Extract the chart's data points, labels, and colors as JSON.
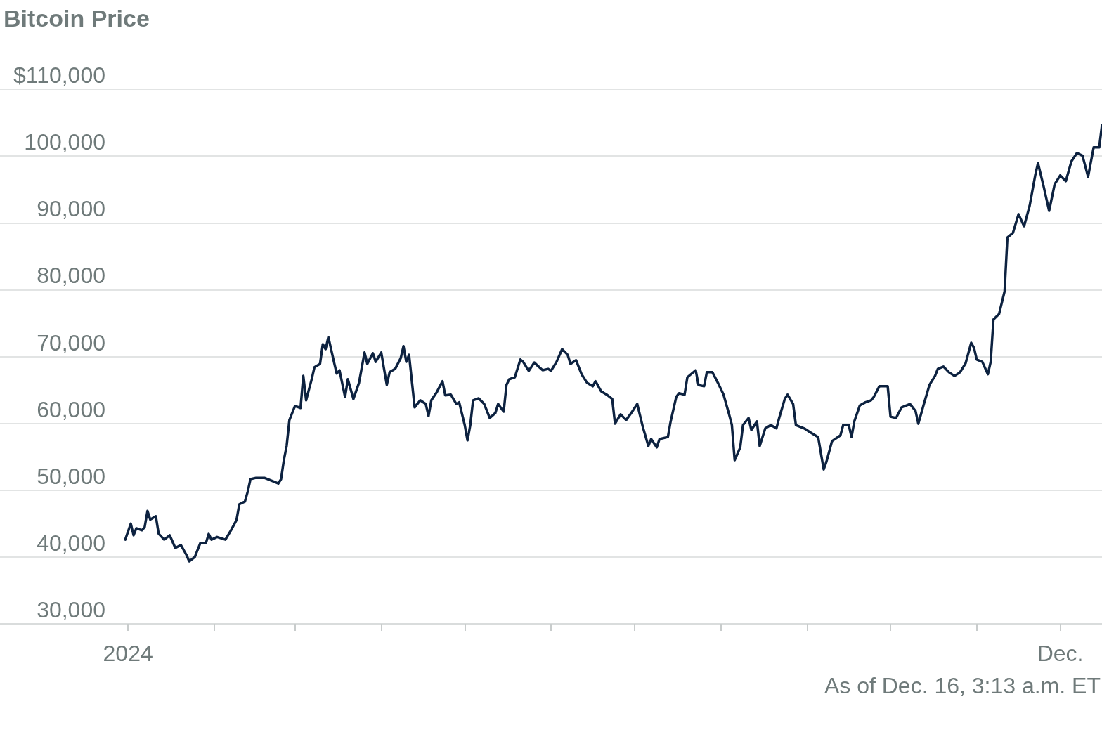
{
  "chart_data": {
    "type": "line",
    "title": "Bitcoin Price",
    "annotations": [
      "As of Dec. 16, 3:13 a.m. ET"
    ],
    "x": [
      "2023-12-31",
      "2024-01-02",
      "2024-01-03",
      "2024-01-04",
      "2024-01-06",
      "2024-01-07",
      "2024-01-08",
      "2024-01-09",
      "2024-01-11",
      "2024-01-12",
      "2024-01-14",
      "2024-01-16",
      "2024-01-18",
      "2024-01-20",
      "2024-01-22",
      "2024-01-23",
      "2024-01-25",
      "2024-01-27",
      "2024-01-29",
      "2024-01-30",
      "2024-01-31",
      "2024-02-02",
      "2024-02-05",
      "2024-02-07",
      "2024-02-09",
      "2024-02-10",
      "2024-02-12",
      "2024-02-13",
      "2024-02-14",
      "2024-02-16",
      "2024-02-19",
      "2024-02-22",
      "2024-02-24",
      "2024-02-25",
      "2024-02-26",
      "2024-02-27",
      "2024-02-28",
      "2024-03-01",
      "2024-03-03",
      "2024-03-04",
      "2024-03-05",
      "2024-03-07",
      "2024-03-08",
      "2024-03-10",
      "2024-03-11",
      "2024-03-12",
      "2024-03-13",
      "2024-03-15",
      "2024-03-16",
      "2024-03-17",
      "2024-03-19",
      "2024-03-20",
      "2024-03-22",
      "2024-03-24",
      "2024-03-26",
      "2024-03-27",
      "2024-03-29",
      "2024-03-30",
      "2024-04-01",
      "2024-04-03",
      "2024-04-04",
      "2024-04-06",
      "2024-04-08",
      "2024-04-09",
      "2024-04-10",
      "2024-04-11",
      "2024-04-13",
      "2024-04-15",
      "2024-04-17",
      "2024-04-18",
      "2024-04-19",
      "2024-04-21",
      "2024-04-23",
      "2024-04-24",
      "2024-04-26",
      "2024-04-28",
      "2024-04-29",
      "2024-05-01",
      "2024-05-02",
      "2024-05-03",
      "2024-05-04",
      "2024-05-06",
      "2024-05-08",
      "2024-05-10",
      "2024-05-12",
      "2024-05-13",
      "2024-05-15",
      "2024-05-16",
      "2024-05-17",
      "2024-05-19",
      "2024-05-21",
      "2024-05-22",
      "2024-05-24",
      "2024-05-26",
      "2024-05-27",
      "2024-05-29",
      "2024-05-31",
      "2024-06-01",
      "2024-06-03",
      "2024-06-05",
      "2024-06-07",
      "2024-06-08",
      "2024-06-10",
      "2024-06-12",
      "2024-06-14",
      "2024-06-16",
      "2024-06-17",
      "2024-06-19",
      "2024-06-21",
      "2024-06-23",
      "2024-06-24",
      "2024-06-26",
      "2024-06-28",
      "2024-06-30",
      "2024-07-02",
      "2024-07-04",
      "2024-07-06",
      "2024-07-07",
      "2024-07-09",
      "2024-07-10",
      "2024-07-13",
      "2024-07-14",
      "2024-07-16",
      "2024-07-17",
      "2024-07-19",
      "2024-07-20",
      "2024-07-23",
      "2024-07-24",
      "2024-07-26",
      "2024-07-27",
      "2024-07-29",
      "2024-07-31",
      "2024-08-02",
      "2024-08-04",
      "2024-08-05",
      "2024-08-06",
      "2024-08-08",
      "2024-08-09",
      "2024-08-11",
      "2024-08-12",
      "2024-08-14",
      "2024-08-15",
      "2024-08-17",
      "2024-08-19",
      "2024-08-21",
      "2024-08-22",
      "2024-08-24",
      "2024-08-25",
      "2024-08-27",
      "2024-08-28",
      "2024-08-31",
      "2024-09-02",
      "2024-09-05",
      "2024-09-07",
      "2024-09-08",
      "2024-09-10",
      "2024-09-13",
      "2024-09-14",
      "2024-09-16",
      "2024-09-17",
      "2024-09-18",
      "2024-09-20",
      "2024-09-22",
      "2024-09-24",
      "2024-09-25",
      "2024-09-27",
      "2024-09-30",
      "2024-10-01",
      "2024-10-03",
      "2024-10-05",
      "2024-10-08",
      "2024-10-10",
      "2024-10-11",
      "2024-10-13",
      "2024-10-15",
      "2024-10-17",
      "2024-10-18",
      "2024-10-20",
      "2024-10-22",
      "2024-10-24",
      "2024-10-26",
      "2024-10-28",
      "2024-10-30",
      "2024-10-31",
      "2024-11-01",
      "2024-11-03",
      "2024-11-05",
      "2024-11-06",
      "2024-11-07",
      "2024-11-09",
      "2024-11-11",
      "2024-11-12",
      "2024-11-14",
      "2024-11-16",
      "2024-11-18",
      "2024-11-20",
      "2024-11-22",
      "2024-11-23",
      "2024-11-25",
      "2024-11-27",
      "2024-11-29",
      "2024-12-01",
      "2024-12-03",
      "2024-12-05",
      "2024-12-07",
      "2024-12-09",
      "2024-12-11",
      "2024-12-13",
      "2024-12-15",
      "2024-12-16"
    ],
    "series": [
      {
        "color": "#0d2240",
        "values": [
          42600,
          45000,
          43250,
          44300,
          44000,
          44500,
          46900,
          45600,
          46100,
          43500,
          42600,
          43250,
          41350,
          41800,
          40300,
          39350,
          40000,
          42100,
          42100,
          43450,
          42600,
          43000,
          42600,
          44000,
          45550,
          47900,
          48300,
          49750,
          51650,
          51850,
          51850,
          51350,
          51000,
          51650,
          54500,
          56600,
          60500,
          62600,
          62300,
          67100,
          63450,
          66600,
          68400,
          68900,
          71850,
          71100,
          72900,
          69200,
          67450,
          67950,
          63950,
          66600,
          63650,
          66050,
          70600,
          68900,
          70500,
          69200,
          70600,
          65750,
          67650,
          68150,
          69750,
          71550,
          69200,
          70250,
          62400,
          63450,
          62900,
          61100,
          63450,
          64700,
          66300,
          64200,
          64300,
          62900,
          63150,
          59750,
          57450,
          59750,
          63450,
          63750,
          62900,
          60800,
          61550,
          62900,
          61750,
          65750,
          66600,
          66900,
          69550,
          69200,
          67850,
          69100,
          68700,
          67950,
          68150,
          67850,
          69200,
          71100,
          70250,
          68900,
          69450,
          67350,
          66050,
          65550,
          66300,
          64800,
          64300,
          63650,
          59950,
          61350,
          60500,
          61650,
          62900,
          59450,
          56600,
          57650,
          56400,
          57650,
          57950,
          60300,
          63950,
          64500,
          64300,
          66900,
          67950,
          65750,
          65550,
          67650,
          67650,
          66050,
          64300,
          61350,
          59750,
          54500,
          56400,
          59750,
          60800,
          59000,
          60300,
          56600,
          59250,
          59750,
          59250,
          60800,
          63650,
          64300,
          62900,
          59750,
          59250,
          58700,
          57950,
          53100,
          54300,
          57350,
          58200,
          59750,
          59750,
          57950,
          60300,
          62700,
          63150,
          63450,
          63950,
          65550,
          65550,
          61000,
          60800,
          62400,
          62900,
          61850,
          59950,
          62900,
          65750,
          67100,
          68150,
          68500,
          67650,
          67100,
          67650,
          69000,
          72050,
          71300,
          69550,
          69200,
          67350,
          69200,
          75550,
          76350,
          79750,
          87800,
          88500,
          91300,
          89500,
          92550,
          97100,
          98950,
          95500,
          91800,
          95800,
          97100,
          96250,
          99200,
          100450,
          100050,
          96900,
          101300,
          101300,
          104650
        ]
      }
    ],
    "xlim": [
      "2023-11-16",
      "2024-12-16"
    ],
    "xticks": [
      {
        "value": "2024-01-01",
        "label": "2024"
      },
      {
        "value": "2024-02-01",
        "label": null
      },
      {
        "value": "2024-03-01",
        "label": null
      },
      {
        "value": "2024-04-01",
        "label": null
      },
      {
        "value": "2024-05-01",
        "label": null
      },
      {
        "value": "2024-06-01",
        "label": null
      },
      {
        "value": "2024-07-01",
        "label": null
      },
      {
        "value": "2024-08-01",
        "label": null
      },
      {
        "value": "2024-09-01",
        "label": null
      },
      {
        "value": "2024-10-01",
        "label": null
      },
      {
        "value": "2024-11-01",
        "label": null
      },
      {
        "value": "2024-12-01",
        "label": "Dec."
      }
    ],
    "ylim": [
      30000,
      110000
    ],
    "yticks": [
      {
        "value": 30000,
        "label": "30,000"
      },
      {
        "value": 40000,
        "label": "40,000"
      },
      {
        "value": 50000,
        "label": "50,000"
      },
      {
        "value": 60000,
        "label": "60,000"
      },
      {
        "value": 70000,
        "label": "70,000"
      },
      {
        "value": 80000,
        "label": "80,000"
      },
      {
        "value": 90000,
        "label": "90,000"
      },
      {
        "value": 100000,
        "label": "100,000"
      },
      {
        "value": 110000,
        "label": "$110,000"
      }
    ],
    "grid": "y",
    "marker": "none",
    "line_style": "solid"
  }
}
